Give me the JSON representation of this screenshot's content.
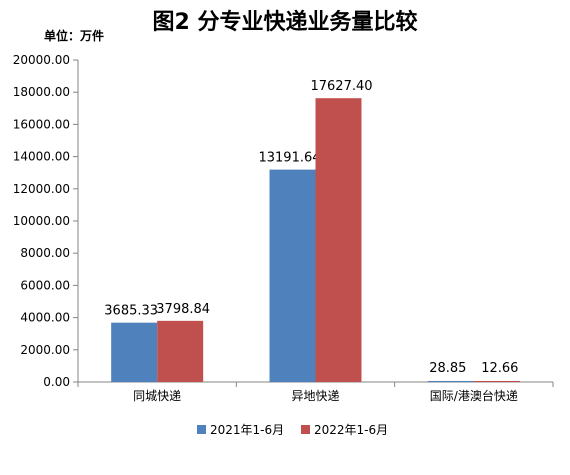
{
  "chart_data": {
    "type": "bar",
    "title": "图2   分专业快递业务量比较",
    "unit_label": "单位：万件",
    "categories": [
      "同城快递",
      "异地快递",
      "国际/港澳台快递"
    ],
    "series": [
      {
        "name": "2021年1-6月",
        "color": "#4f81bd",
        "values": [
          3685.33,
          13191.64,
          28.85
        ],
        "labels": [
          "3685.33",
          "13191.64",
          "28.85"
        ]
      },
      {
        "name": "2022年1-6月",
        "color": "#c0504d",
        "values": [
          3798.84,
          17627.4,
          12.66
        ],
        "labels": [
          "3798.84",
          "17627.40",
          "12.66"
        ]
      }
    ],
    "ylim": [
      0,
      20000
    ],
    "yticks": [
      "0.00",
      "2000.00",
      "4000.00",
      "6000.00",
      "8000.00",
      "10000.00",
      "12000.00",
      "14000.00",
      "16000.00",
      "18000.00",
      "20000.00"
    ],
    "grid": false,
    "legend_position": "bottom"
  }
}
